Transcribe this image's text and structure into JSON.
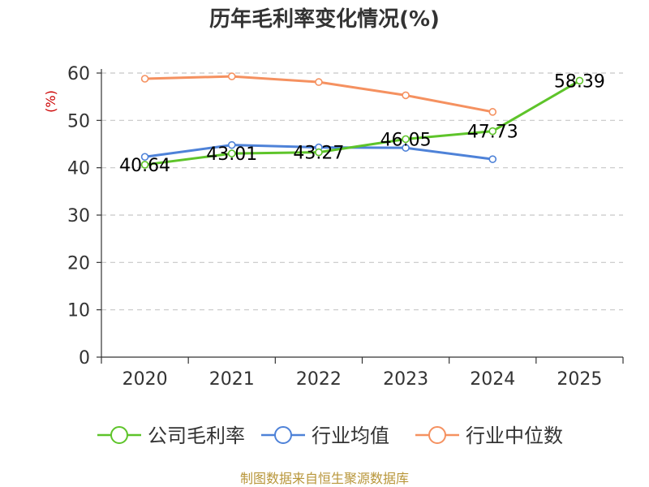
{
  "chart_data": {
    "type": "line",
    "title": "历年毛利率变化情况(%)",
    "ylabel": "(%)",
    "xlabel": "",
    "categories": [
      "2020",
      "2021",
      "2022",
      "2023",
      "2024",
      "2025"
    ],
    "ylim": [
      0,
      60
    ],
    "yticks": [
      0,
      10,
      20,
      30,
      40,
      50,
      60
    ],
    "grid": "horizontal-dashed",
    "legend_position": "bottom",
    "series": [
      {
        "name": "公司毛利率",
        "color": "#5ec42a",
        "values": [
          40.64,
          43.01,
          43.27,
          46.05,
          47.73,
          58.39
        ],
        "labels": [
          "40.64",
          "43.01",
          "43.27",
          "46.05",
          "47.73",
          "58.39"
        ]
      },
      {
        "name": "行业均值",
        "color": "#4e82d8",
        "values": [
          42.3,
          44.8,
          44.3,
          44.2,
          41.8,
          null
        ]
      },
      {
        "name": "行业中位数",
        "color": "#f59160",
        "values": [
          58.8,
          59.3,
          58.1,
          55.3,
          51.8,
          null
        ]
      }
    ]
  },
  "footer": {
    "source": "制图数据来自恒生聚源数据库"
  }
}
